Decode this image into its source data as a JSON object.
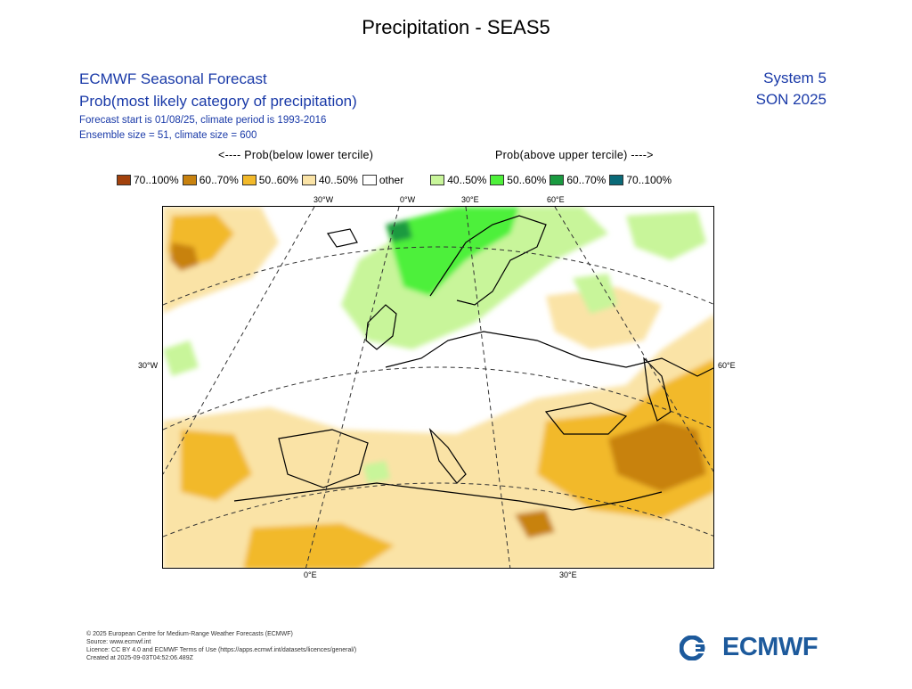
{
  "page_title": "Precipitation - SEAS5",
  "header": {
    "product_title": "ECMWF Seasonal Forecast",
    "product_subtitle": "Prob(most likely category of precipitation)",
    "forecast_start": "Forecast start is 01/08/25, climate period is 1993-2016",
    "ensemble": "Ensemble size = 51, climate size = 600",
    "system": "System 5",
    "season": "SON 2025"
  },
  "tercile_labels": {
    "below": "<---- Prob(below lower tercile)",
    "above": "Prob(above upper tercile) ---->"
  },
  "legend": [
    {
      "label": "70..100%",
      "color": "#a2410c"
    },
    {
      "label": "60..70%",
      "color": "#c8820f"
    },
    {
      "label": "50..60%",
      "color": "#f2b92a"
    },
    {
      "label": "40..50%",
      "color": "#fae3a6"
    },
    {
      "label": "other",
      "color": "#ffffff"
    },
    {
      "label": "40..50%",
      "color": "#c8f59a"
    },
    {
      "label": "50..60%",
      "color": "#4ef03a"
    },
    {
      "label": "60..70%",
      "color": "#1a9a40"
    },
    {
      "label": "70..100%",
      "color": "#0a6a78"
    }
  ],
  "map_labels": {
    "top": [
      "30°W",
      "0°W",
      "30°E",
      "60°E"
    ],
    "left": "30°W",
    "right": "60°E",
    "bottom": [
      "0°E",
      "30°E"
    ]
  },
  "footer": [
    "© 2025 European Centre for Medium-Range Weather Forecasts (ECMWF)",
    "Source: www.ecmwf.int",
    "Licence: CC BY 4.0 and ECMWF Terms of Use (https://apps.ecmwf.int/datasets/licences/general/)",
    "Created at 2025-09-03T04:52:06.489Z"
  ],
  "logo_text": "ECMWF"
}
